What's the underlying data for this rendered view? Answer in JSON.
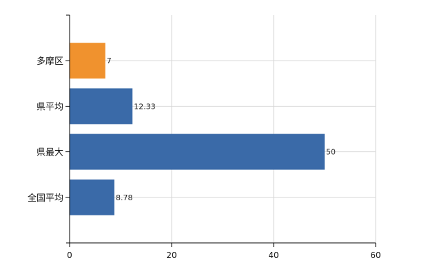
{
  "chart_data": {
    "type": "bar",
    "orientation": "horizontal",
    "categories": [
      "多摩区",
      "県平均",
      "県最大",
      "全国平均"
    ],
    "values": [
      7,
      12.33,
      50,
      8.78
    ],
    "value_labels": [
      "7",
      "12.33",
      "50",
      "8.78"
    ],
    "bar_colors": [
      "#f0922e",
      "#3a6aa8",
      "#3a6aa8",
      "#3a6aa8"
    ],
    "xlim": [
      0,
      60
    ],
    "xticks": [
      0,
      20,
      40,
      60
    ],
    "xtick_labels": [
      "0",
      "20",
      "40",
      "60"
    ],
    "grid": true,
    "title": "",
    "xlabel": "",
    "ylabel": ""
  }
}
